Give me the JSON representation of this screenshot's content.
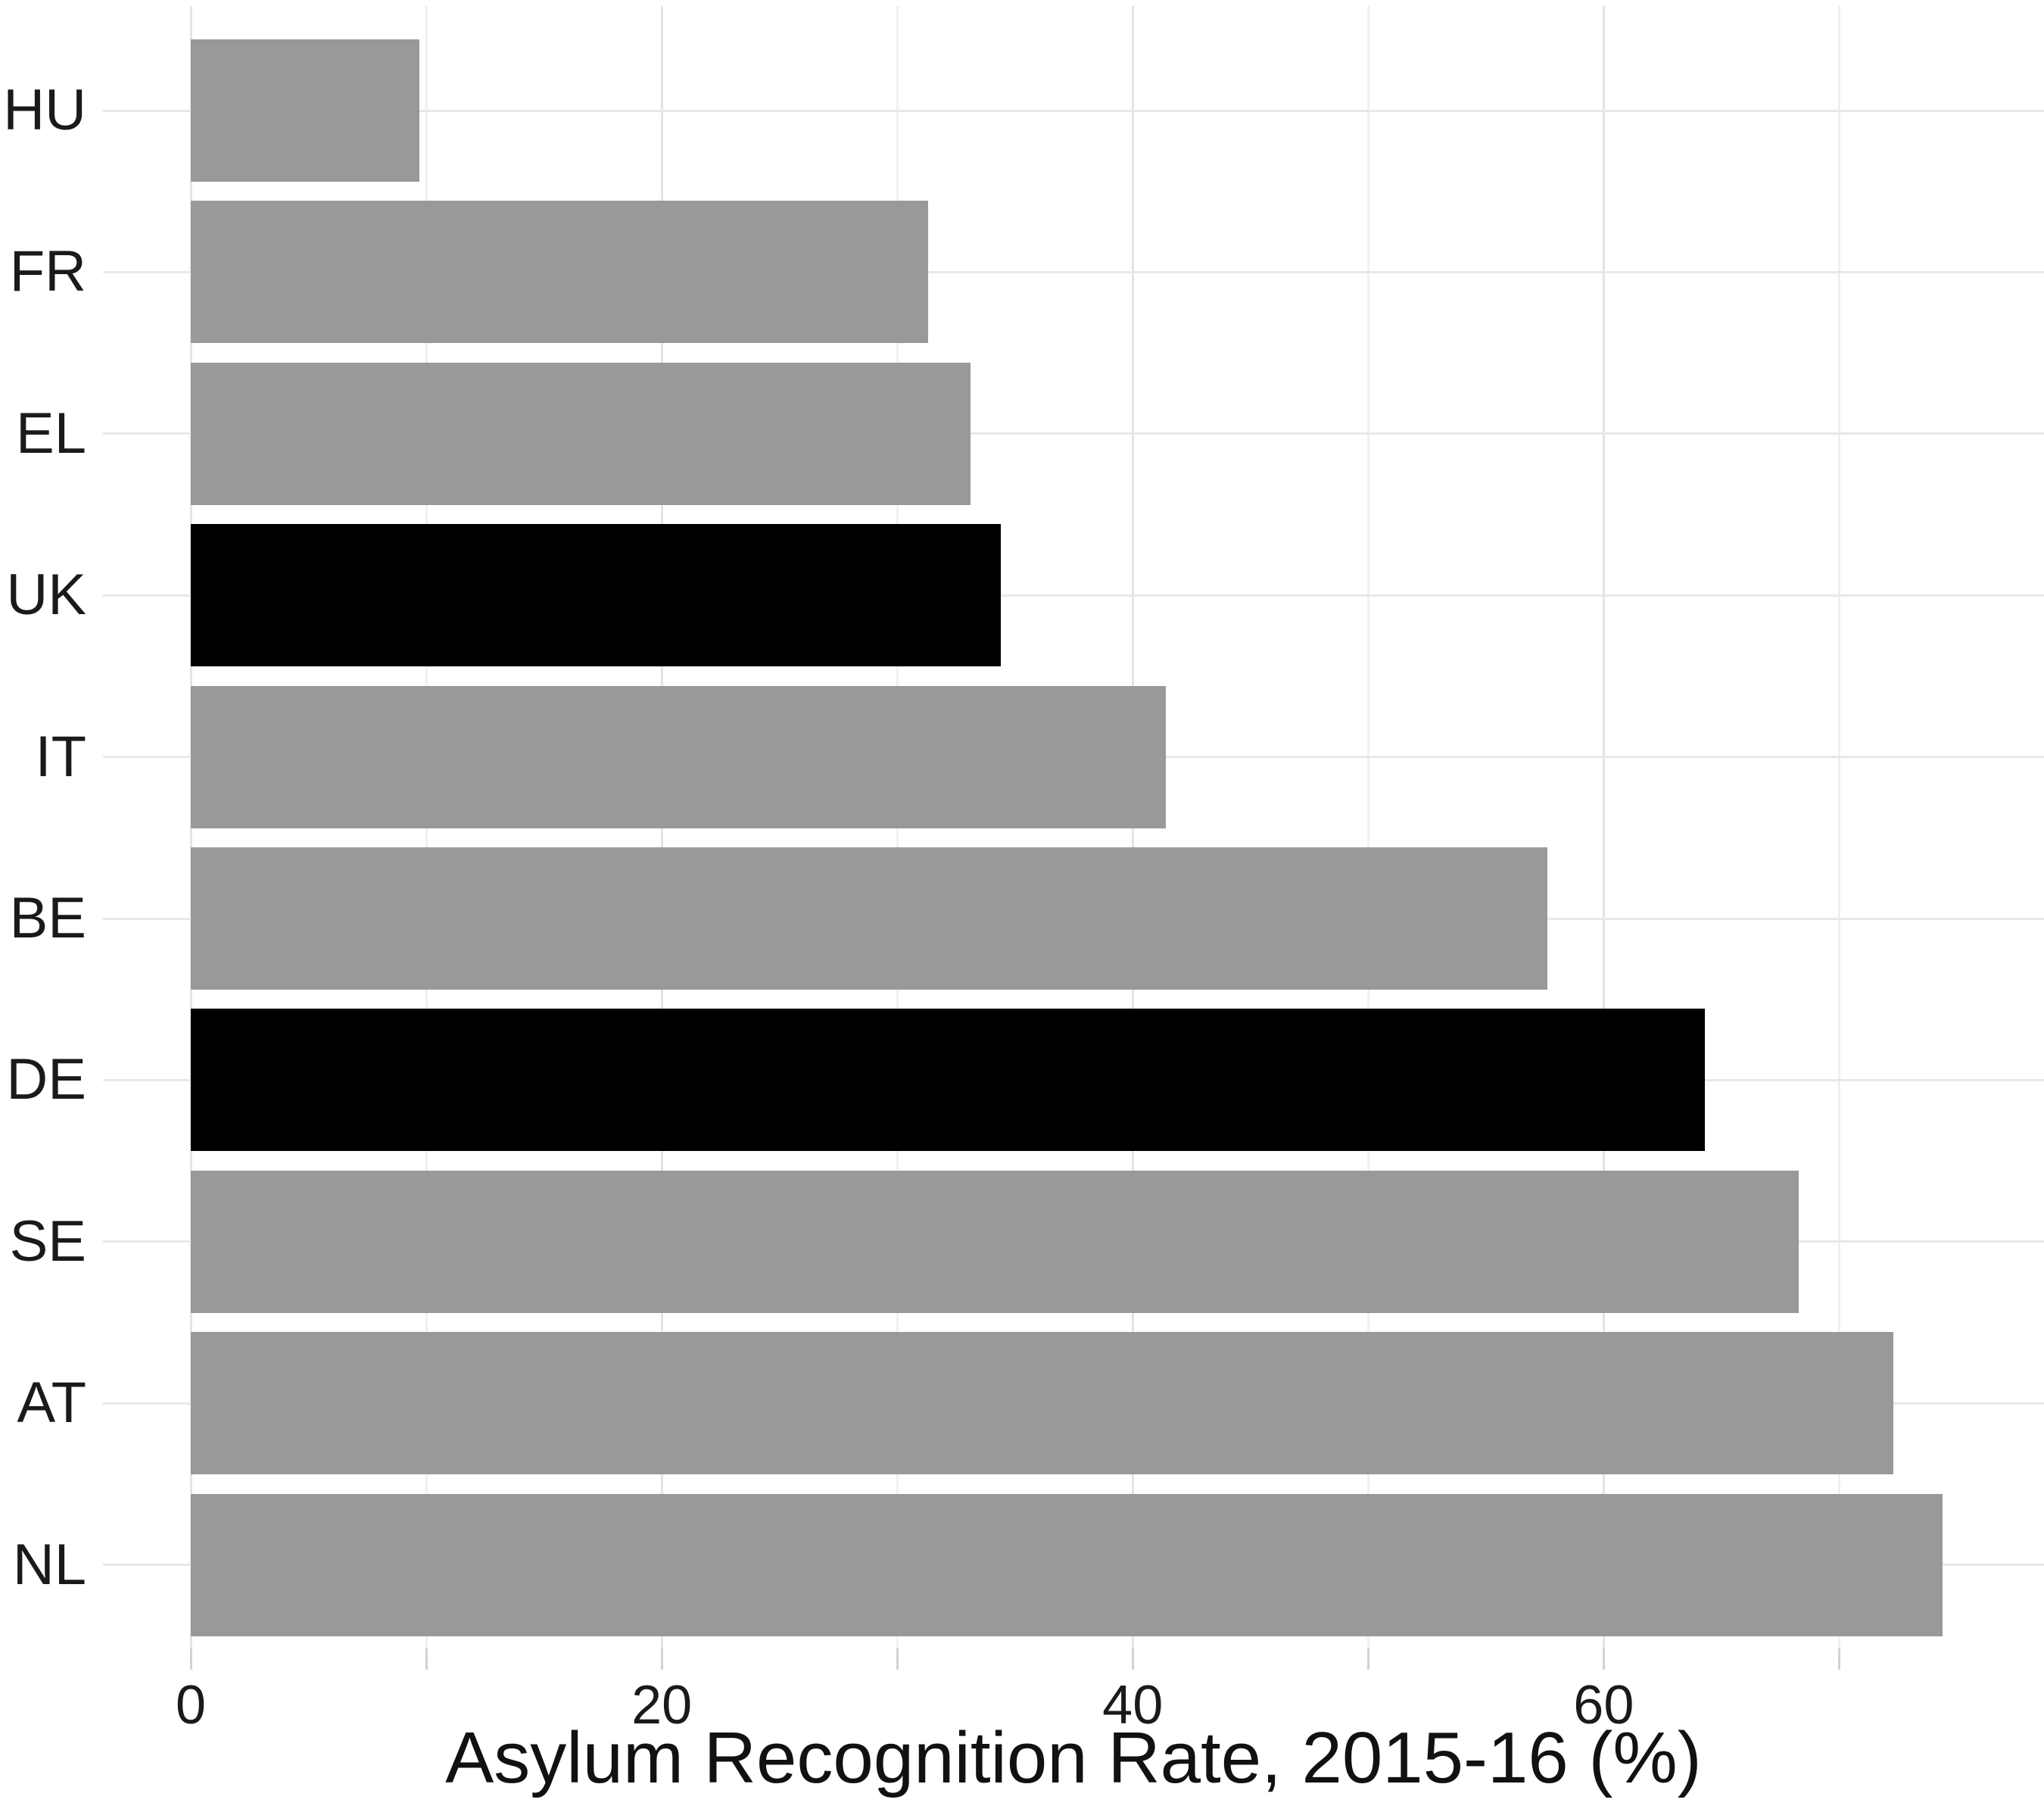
{
  "chart_data": {
    "type": "bar",
    "orientation": "horizontal",
    "title": "",
    "xlabel": "Asylum Recognition Rate, 2015-16 (%)",
    "ylabel": "",
    "categories": [
      "HU",
      "FR",
      "EL",
      "UK",
      "IT",
      "BE",
      "DE",
      "SE",
      "AT",
      "NL"
    ],
    "values": [
      9.7,
      31.3,
      33.1,
      34.4,
      41.4,
      57.6,
      64.3,
      68.3,
      72.3,
      74.4
    ],
    "highlighted_categories": [
      "UK",
      "DE"
    ],
    "bar_colors": [
      "#999999",
      "#999999",
      "#999999",
      "#000000",
      "#999999",
      "#999999",
      "#000000",
      "#999999",
      "#999999",
      "#999999"
    ],
    "x_tick_labels": [
      "0",
      "20",
      "40",
      "60"
    ],
    "x_tick_values": [
      0,
      20,
      40,
      60
    ],
    "gridline_values": [
      0,
      10,
      20,
      30,
      40,
      50,
      60,
      70
    ],
    "xlim": [
      -3.73,
      78.7
    ],
    "grid": "on",
    "legend": "none",
    "units": "percent"
  },
  "colors": {
    "bar_gray": "#999999",
    "bar_highlight": "#000000",
    "grid_major": "#e4e4e4",
    "grid_minor": "#f0f0f0",
    "tick_mark": "#d2d2d2",
    "text": "#1a1a1a",
    "background": "#ffffff"
  }
}
